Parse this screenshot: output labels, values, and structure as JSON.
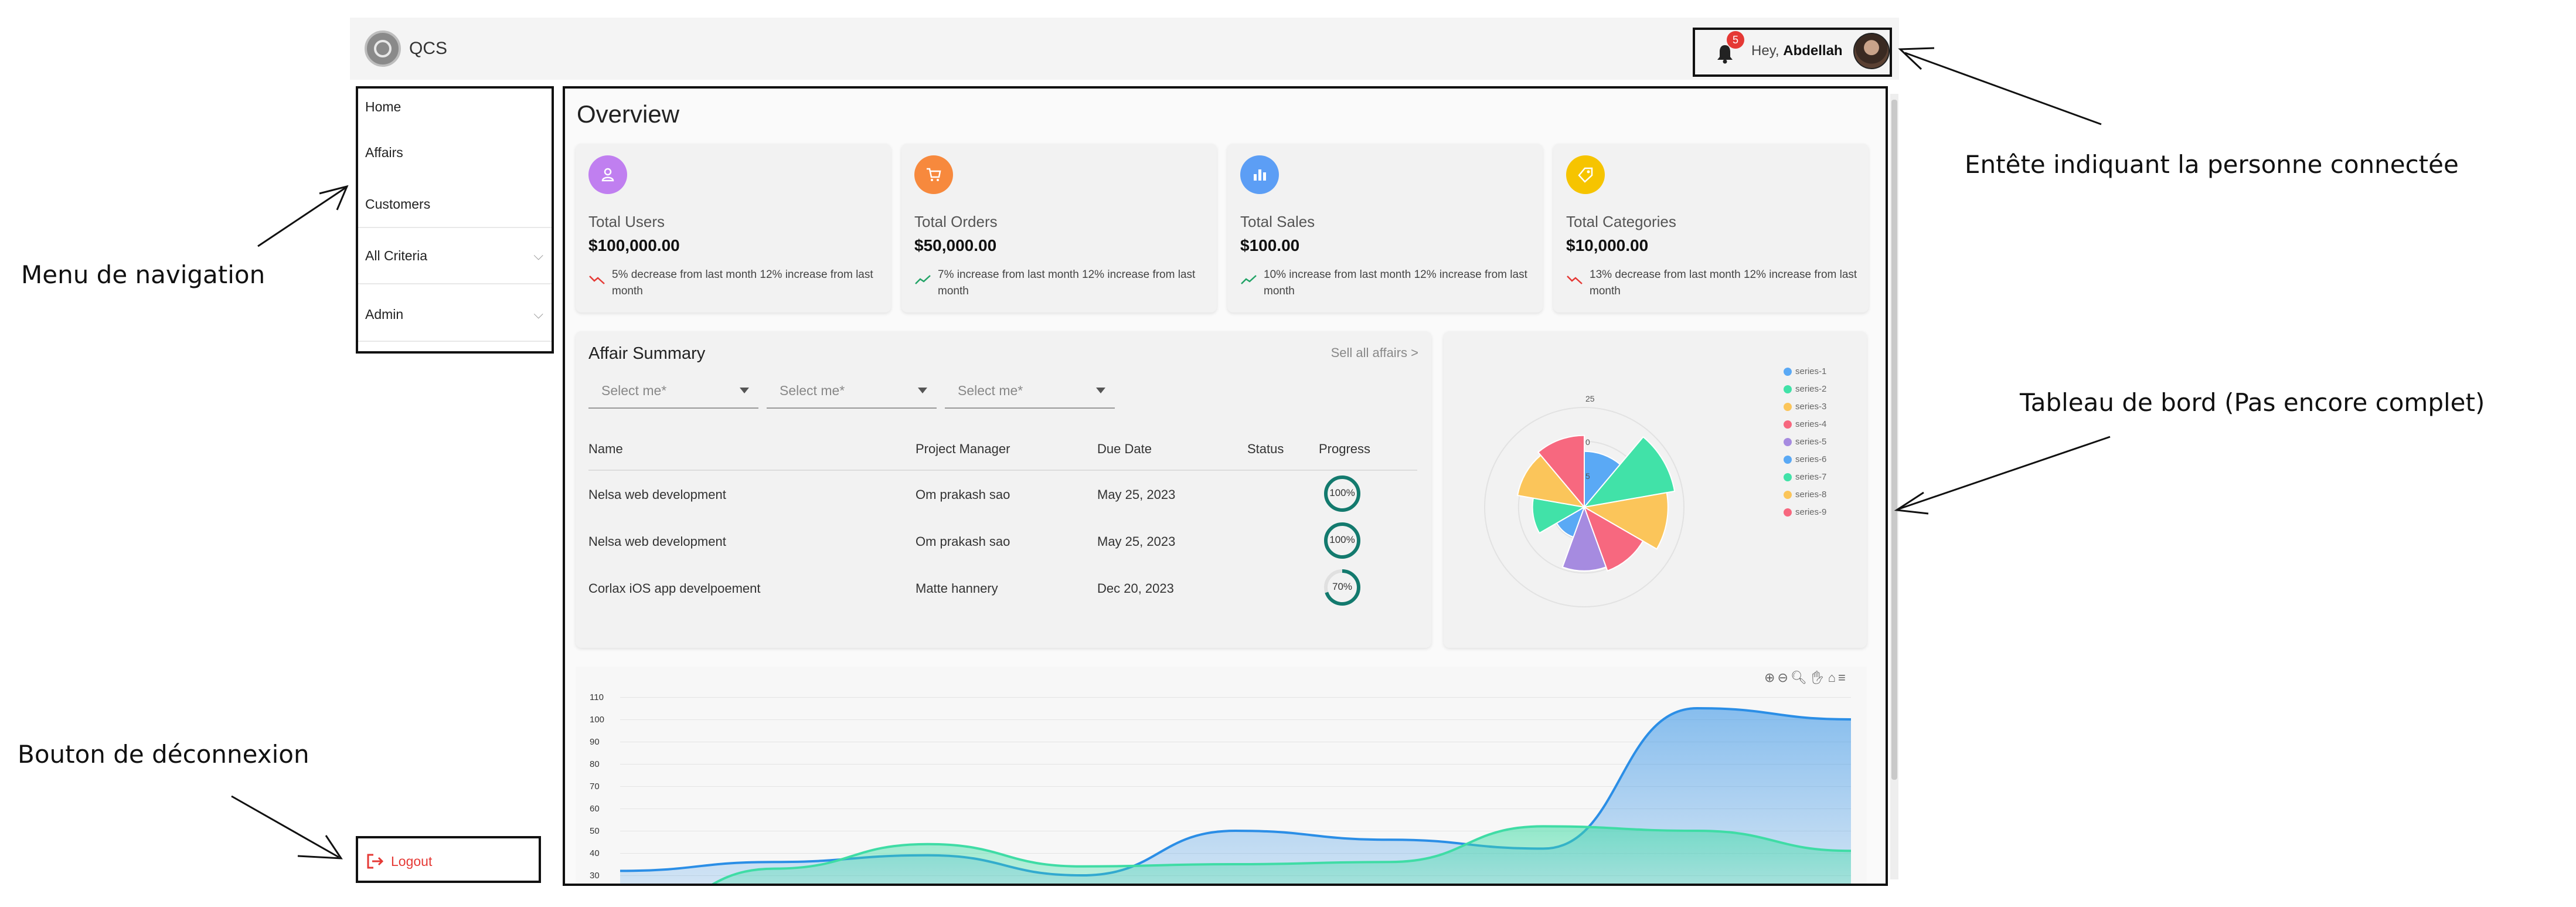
{
  "header": {
    "app_name": "QCS",
    "notifications_count": "5",
    "greeting": "Hey, ",
    "user_name": "Abdellah"
  },
  "sidebar": {
    "items": [
      {
        "label": "Home",
        "expandable": false
      },
      {
        "label": "Affairs",
        "expandable": false
      },
      {
        "label": "Customers",
        "expandable": false
      },
      {
        "label": "All Criteria",
        "expandable": true
      },
      {
        "label": "Admin",
        "expandable": true
      }
    ],
    "logout_label": "Logout"
  },
  "main": {
    "title": "Overview",
    "cards": [
      {
        "title": "Total Users",
        "value": "$100,000.00",
        "note": "5% decrease from last month 12% increase from last month",
        "icon": "user-icon",
        "color": "#c07ff0",
        "trend": "down"
      },
      {
        "title": "Total Orders",
        "value": "$50,000.00",
        "note": "7% increase from last month 12% increase from last month",
        "icon": "cart-icon",
        "color": "#f7893d",
        "trend": "up"
      },
      {
        "title": "Total Sales",
        "value": "$100.00",
        "note": "10% increase from last month 12% increase from last month",
        "icon": "bar-chart-icon",
        "color": "#5c9ef5",
        "trend": "up"
      },
      {
        "title": "Total Categories",
        "value": "$10,000.00",
        "note": "13% decrease from last month 12% increase from last month",
        "icon": "tag-icon",
        "color": "#f6c400",
        "trend": "down"
      }
    ],
    "affair_summary": {
      "title": "Affair Summary",
      "see_all": "Sell all affairs >",
      "selects": [
        "Select me*",
        "Select me*",
        "Select me*"
      ],
      "columns": [
        "Name",
        "Project Manager",
        "Due Date",
        "Status",
        "Progress"
      ],
      "rows": [
        {
          "name": "Nelsa web development",
          "manager": "Om prakash sao",
          "due": "May 25, 2023",
          "status": "",
          "progress": 100,
          "progress_label": "100%"
        },
        {
          "name": "Nelsa web development",
          "manager": "Om prakash sao",
          "due": "May 25, 2023",
          "status": "",
          "progress": 100,
          "progress_label": "100%"
        },
        {
          "name": "Corlax iOS app develpoement",
          "manager": "Matte hannery",
          "due": "Dec 20, 2023",
          "status": "",
          "progress": 70,
          "progress_label": "70%"
        }
      ]
    }
  },
  "chart_data": [
    {
      "type": "polar-area",
      "radial_ticks": [
        "25",
        "0",
        "5"
      ],
      "series": [
        {
          "name": "series-1",
          "value": 14,
          "color": "#5aa9f5"
        },
        {
          "name": "series-2",
          "value": 23,
          "color": "#41e2a8"
        },
        {
          "name": "series-3",
          "value": 21,
          "color": "#fbc55a"
        },
        {
          "name": "series-4",
          "value": 17,
          "color": "#f7687f"
        },
        {
          "name": "series-5",
          "value": 16,
          "color": "#a68be0"
        },
        {
          "name": "series-6",
          "value": 8,
          "color": "#5aa9f5"
        },
        {
          "name": "series-7",
          "value": 13,
          "color": "#41e2a8"
        },
        {
          "name": "series-8",
          "value": 17,
          "color": "#fbc55a"
        },
        {
          "name": "series-9",
          "value": 18,
          "color": "#f7687f"
        }
      ],
      "legend": "right"
    },
    {
      "type": "area",
      "y_ticks": [
        "110",
        "100",
        "90",
        "80",
        "70",
        "60",
        "50",
        "40",
        "30"
      ],
      "ylim": [
        30,
        110
      ],
      "series": [
        {
          "color": "#2b8ee6",
          "values": [
            32,
            36,
            39,
            30,
            50,
            46,
            42,
            105,
            100
          ]
        },
        {
          "color": "#3fdca5",
          "values": [
            10,
            33,
            44,
            34,
            35,
            36,
            52,
            50,
            41
          ]
        }
      ]
    }
  ],
  "annotations": {
    "nav": "Menu de navigation",
    "header": "Entête indiquant la personne connectée",
    "dashboard": "Tableau de bord (Pas encore complet)",
    "logout": "Bouton de déconnexion"
  }
}
